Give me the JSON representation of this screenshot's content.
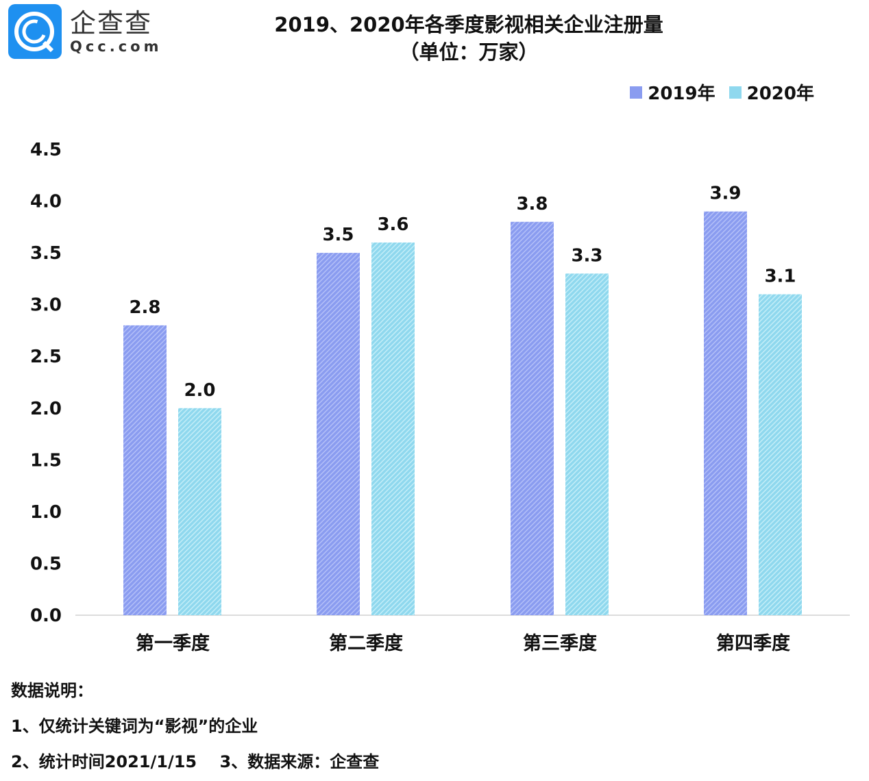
{
  "logo": {
    "cn": "企查查",
    "en": "Qcc.com"
  },
  "chart_data": {
    "type": "bar",
    "title": "2019、2020年各季度影视相关企业注册量",
    "subtitle": "（单位：万家）",
    "categories": [
      "第一季度",
      "第二季度",
      "第三季度",
      "第四季度"
    ],
    "series": [
      {
        "name": "2019年",
        "color": "#8a9cf0",
        "values": [
          2.8,
          3.5,
          3.8,
          3.9
        ],
        "labels": [
          "2.8",
          "3.5",
          "3.8",
          "3.9"
        ]
      },
      {
        "name": "2020年",
        "color": "#8fd8ee",
        "values": [
          2.0,
          3.6,
          3.3,
          3.1
        ],
        "labels": [
          "2.0",
          "3.6",
          "3.3",
          "3.1"
        ]
      }
    ],
    "yticks": [
      "0.0",
      "0.5",
      "1.0",
      "1.5",
      "2.0",
      "2.5",
      "3.0",
      "3.5",
      "4.0",
      "4.5"
    ],
    "ylim": [
      0,
      4.5
    ],
    "legend": "top-right",
    "grid": false
  },
  "notes": {
    "heading": "数据说明：",
    "line1": "1、仅统计关键词为“影视”的企业",
    "line2": "2、统计时间2021/1/15    3、数据来源：企查查"
  }
}
